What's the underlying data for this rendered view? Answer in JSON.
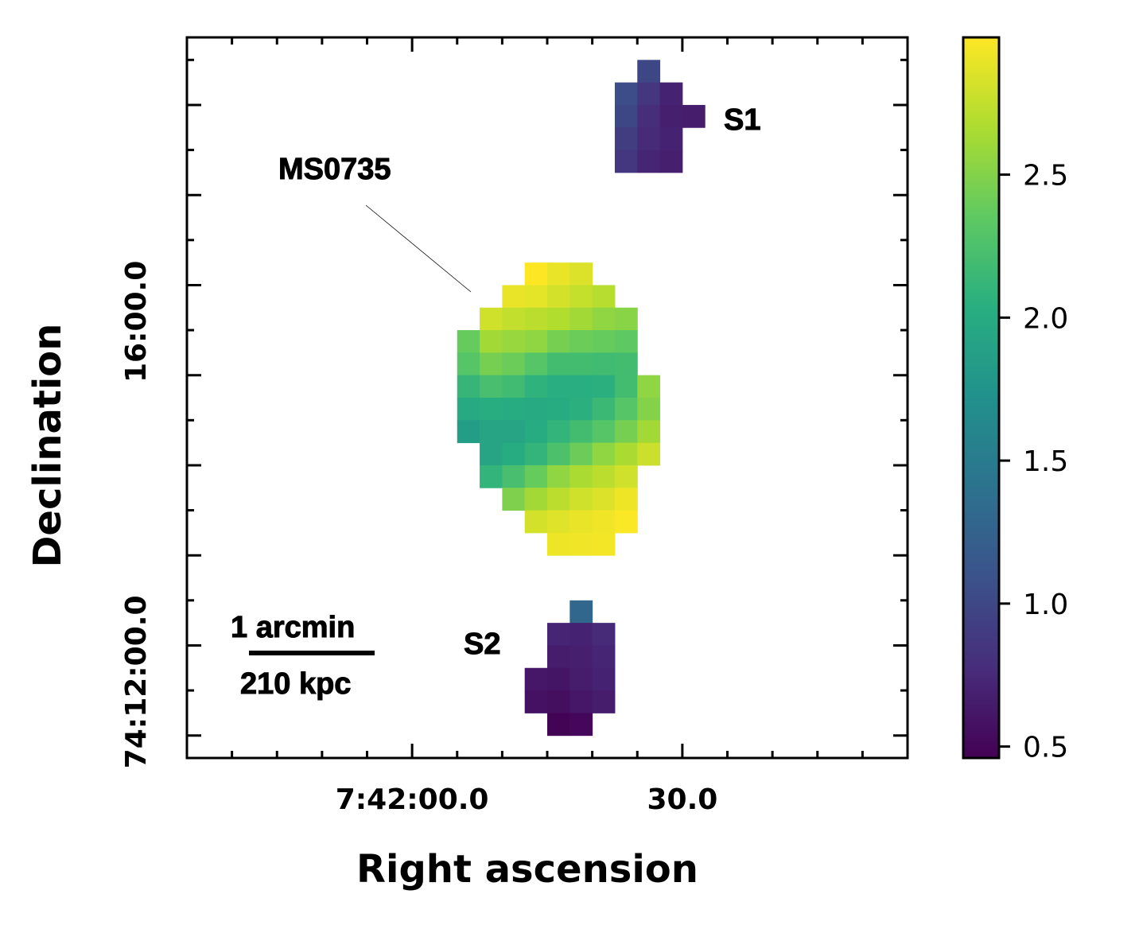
{
  "chart_data": {
    "type": "heatmap",
    "title": "",
    "xlabel": "Right ascension",
    "ylabel": "Declination",
    "x_ticks": [
      {
        "label": "7:42:00.0",
        "col": 10
      },
      {
        "label": "30.0",
        "col": 22
      }
    ],
    "y_ticks": [
      {
        "label": "16:00.0",
        "row": 11
      },
      {
        "label": "74:12:00.0",
        "row": 27
      }
    ],
    "grid": false,
    "grid_size": {
      "cols": 32,
      "rows": 32
    },
    "colorbar": {
      "cmap": "viridis",
      "vmin": 0.46,
      "vmax": 2.98,
      "ticks": [
        0.5,
        1.0,
        1.5,
        2.0,
        2.5
      ],
      "tick_labels": [
        "0.5",
        "1.0",
        "1.5",
        "2.0",
        "2.5"
      ],
      "placement": "right"
    },
    "regions": [
      {
        "name": "MS0735",
        "label": "MS0735",
        "label_placement": "upper-left",
        "label_pointer": true
      },
      {
        "name": "S1",
        "label": "S1",
        "label_placement": "right"
      },
      {
        "name": "S2",
        "label": "S2",
        "label_placement": "left"
      }
    ],
    "scale_bar": {
      "top_label": "1 arcmin",
      "bottom_label": "210 kpc",
      "placement": "lower-left"
    },
    "cells": [
      {
        "c": 20,
        "r": 1,
        "v": 1.0
      },
      {
        "c": 19,
        "r": 2,
        "v": 1.05
      },
      {
        "c": 20,
        "r": 2,
        "v": 0.85
      },
      {
        "c": 21,
        "r": 2,
        "v": 0.7
      },
      {
        "c": 19,
        "r": 3,
        "v": 1.0
      },
      {
        "c": 20,
        "r": 3,
        "v": 0.78
      },
      {
        "c": 21,
        "r": 3,
        "v": 0.68
      },
      {
        "c": 22,
        "r": 3,
        "v": 0.65
      },
      {
        "c": 19,
        "r": 4,
        "v": 0.9
      },
      {
        "c": 20,
        "r": 4,
        "v": 0.75
      },
      {
        "c": 21,
        "r": 4,
        "v": 0.7
      },
      {
        "c": 19,
        "r": 5,
        "v": 0.85
      },
      {
        "c": 20,
        "r": 5,
        "v": 0.72
      },
      {
        "c": 21,
        "r": 5,
        "v": 0.68
      },
      {
        "c": 15,
        "r": 10,
        "v": 2.98
      },
      {
        "c": 16,
        "r": 10,
        "v": 2.9
      },
      {
        "c": 17,
        "r": 10,
        "v": 2.85
      },
      {
        "c": 14,
        "r": 11,
        "v": 2.9
      },
      {
        "c": 15,
        "r": 11,
        "v": 2.88
      },
      {
        "c": 16,
        "r": 11,
        "v": 2.82
      },
      {
        "c": 17,
        "r": 11,
        "v": 2.76
      },
      {
        "c": 18,
        "r": 11,
        "v": 2.7
      },
      {
        "c": 13,
        "r": 12,
        "v": 2.8
      },
      {
        "c": 14,
        "r": 12,
        "v": 2.75
      },
      {
        "c": 15,
        "r": 12,
        "v": 2.72
      },
      {
        "c": 16,
        "r": 12,
        "v": 2.68
      },
      {
        "c": 17,
        "r": 12,
        "v": 2.62
      },
      {
        "c": 18,
        "r": 12,
        "v": 2.55
      },
      {
        "c": 19,
        "r": 12,
        "v": 2.52
      },
      {
        "c": 12,
        "r": 13,
        "v": 2.38
      },
      {
        "c": 13,
        "r": 13,
        "v": 2.62
      },
      {
        "c": 14,
        "r": 13,
        "v": 2.58
      },
      {
        "c": 15,
        "r": 13,
        "v": 2.55
      },
      {
        "c": 16,
        "r": 13,
        "v": 2.45
      },
      {
        "c": 17,
        "r": 13,
        "v": 2.4
      },
      {
        "c": 18,
        "r": 13,
        "v": 2.38
      },
      {
        "c": 19,
        "r": 13,
        "v": 2.35
      },
      {
        "c": 12,
        "r": 14,
        "v": 2.3
      },
      {
        "c": 13,
        "r": 14,
        "v": 2.45
      },
      {
        "c": 14,
        "r": 14,
        "v": 2.4
      },
      {
        "c": 15,
        "r": 14,
        "v": 2.3
      },
      {
        "c": 16,
        "r": 14,
        "v": 2.2
      },
      {
        "c": 17,
        "r": 14,
        "v": 2.2
      },
      {
        "c": 18,
        "r": 14,
        "v": 2.18
      },
      {
        "c": 19,
        "r": 14,
        "v": 2.2
      },
      {
        "c": 12,
        "r": 15,
        "v": 2.12
      },
      {
        "c": 13,
        "r": 15,
        "v": 2.22
      },
      {
        "c": 14,
        "r": 15,
        "v": 2.18
      },
      {
        "c": 15,
        "r": 15,
        "v": 2.08
      },
      {
        "c": 16,
        "r": 15,
        "v": 2.03
      },
      {
        "c": 17,
        "r": 15,
        "v": 2.03
      },
      {
        "c": 18,
        "r": 15,
        "v": 2.05
      },
      {
        "c": 19,
        "r": 15,
        "v": 2.2
      },
      {
        "c": 20,
        "r": 15,
        "v": 2.55
      },
      {
        "c": 12,
        "r": 16,
        "v": 1.98
      },
      {
        "c": 13,
        "r": 16,
        "v": 2.02
      },
      {
        "c": 14,
        "r": 16,
        "v": 2.0
      },
      {
        "c": 15,
        "r": 16,
        "v": 1.98
      },
      {
        "c": 16,
        "r": 16,
        "v": 2.0
      },
      {
        "c": 17,
        "r": 16,
        "v": 2.05
      },
      {
        "c": 18,
        "r": 16,
        "v": 2.15
      },
      {
        "c": 19,
        "r": 16,
        "v": 2.3
      },
      {
        "c": 20,
        "r": 16,
        "v": 2.5
      },
      {
        "c": 12,
        "r": 17,
        "v": 1.85
      },
      {
        "c": 13,
        "r": 17,
        "v": 1.93
      },
      {
        "c": 14,
        "r": 17,
        "v": 1.93
      },
      {
        "c": 15,
        "r": 17,
        "v": 2.0
      },
      {
        "c": 16,
        "r": 17,
        "v": 2.1
      },
      {
        "c": 17,
        "r": 17,
        "v": 2.2
      },
      {
        "c": 18,
        "r": 17,
        "v": 2.3
      },
      {
        "c": 19,
        "r": 17,
        "v": 2.45
      },
      {
        "c": 20,
        "r": 17,
        "v": 2.62
      },
      {
        "c": 13,
        "r": 18,
        "v": 1.93
      },
      {
        "c": 14,
        "r": 18,
        "v": 2.0
      },
      {
        "c": 15,
        "r": 18,
        "v": 2.1
      },
      {
        "c": 16,
        "r": 18,
        "v": 2.25
      },
      {
        "c": 17,
        "r": 18,
        "v": 2.4
      },
      {
        "c": 18,
        "r": 18,
        "v": 2.55
      },
      {
        "c": 19,
        "r": 18,
        "v": 2.65
      },
      {
        "c": 20,
        "r": 18,
        "v": 2.78
      },
      {
        "c": 13,
        "r": 19,
        "v": 2.1
      },
      {
        "c": 14,
        "r": 19,
        "v": 2.22
      },
      {
        "c": 15,
        "r": 19,
        "v": 2.38
      },
      {
        "c": 16,
        "r": 19,
        "v": 2.55
      },
      {
        "c": 17,
        "r": 19,
        "v": 2.65
      },
      {
        "c": 18,
        "r": 19,
        "v": 2.72
      },
      {
        "c": 19,
        "r": 19,
        "v": 2.8
      },
      {
        "c": 14,
        "r": 20,
        "v": 2.48
      },
      {
        "c": 15,
        "r": 20,
        "v": 2.62
      },
      {
        "c": 16,
        "r": 20,
        "v": 2.72
      },
      {
        "c": 17,
        "r": 20,
        "v": 2.8
      },
      {
        "c": 18,
        "r": 20,
        "v": 2.85
      },
      {
        "c": 19,
        "r": 20,
        "v": 2.92
      },
      {
        "c": 15,
        "r": 21,
        "v": 2.82
      },
      {
        "c": 16,
        "r": 21,
        "v": 2.86
      },
      {
        "c": 17,
        "r": 21,
        "v": 2.9
      },
      {
        "c": 18,
        "r": 21,
        "v": 2.93
      },
      {
        "c": 19,
        "r": 21,
        "v": 2.97
      },
      {
        "c": 16,
        "r": 22,
        "v": 2.92
      },
      {
        "c": 17,
        "r": 22,
        "v": 2.93
      },
      {
        "c": 18,
        "r": 22,
        "v": 2.94
      },
      {
        "c": 17,
        "r": 25,
        "v": 1.3
      },
      {
        "c": 16,
        "r": 26,
        "v": 0.72
      },
      {
        "c": 17,
        "r": 26,
        "v": 0.7
      },
      {
        "c": 18,
        "r": 26,
        "v": 0.75
      },
      {
        "c": 16,
        "r": 27,
        "v": 0.65
      },
      {
        "c": 17,
        "r": 27,
        "v": 0.68
      },
      {
        "c": 18,
        "r": 27,
        "v": 0.72
      },
      {
        "c": 15,
        "r": 28,
        "v": 0.62
      },
      {
        "c": 16,
        "r": 28,
        "v": 0.6
      },
      {
        "c": 17,
        "r": 28,
        "v": 0.65
      },
      {
        "c": 18,
        "r": 28,
        "v": 0.7
      },
      {
        "c": 15,
        "r": 29,
        "v": 0.58
      },
      {
        "c": 16,
        "r": 29,
        "v": 0.56
      },
      {
        "c": 17,
        "r": 29,
        "v": 0.62
      },
      {
        "c": 18,
        "r": 29,
        "v": 0.66
      },
      {
        "c": 16,
        "r": 30,
        "v": 0.48
      },
      {
        "c": 17,
        "r": 30,
        "v": 0.5
      }
    ]
  }
}
